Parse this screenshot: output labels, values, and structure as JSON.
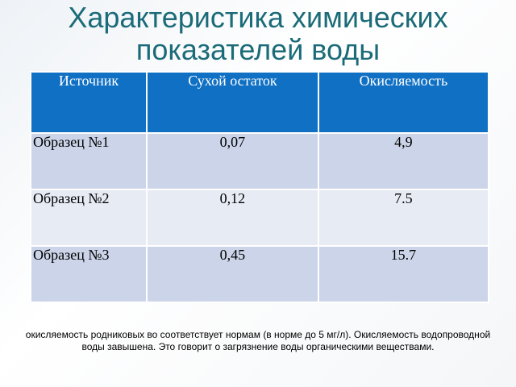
{
  "header": {
    "title": "Характеристика химических показателей воды"
  },
  "table": {
    "columns": [
      "Источник",
      "Сухой остаток",
      "Окисляемость"
    ],
    "rows": [
      [
        "Образец №1",
        "0,07",
        "4,9"
      ],
      [
        "Образец №2",
        "0,12",
        "7.5"
      ],
      [
        "Образец №3",
        "0,45",
        "15.7"
      ]
    ]
  },
  "note": "окисляемость родниковых во соответствует нормам (в норме до 5 мг/л). Окисляемость водопроводной воды завышена. Это говорит о загрязнение воды органическими веществами."
}
